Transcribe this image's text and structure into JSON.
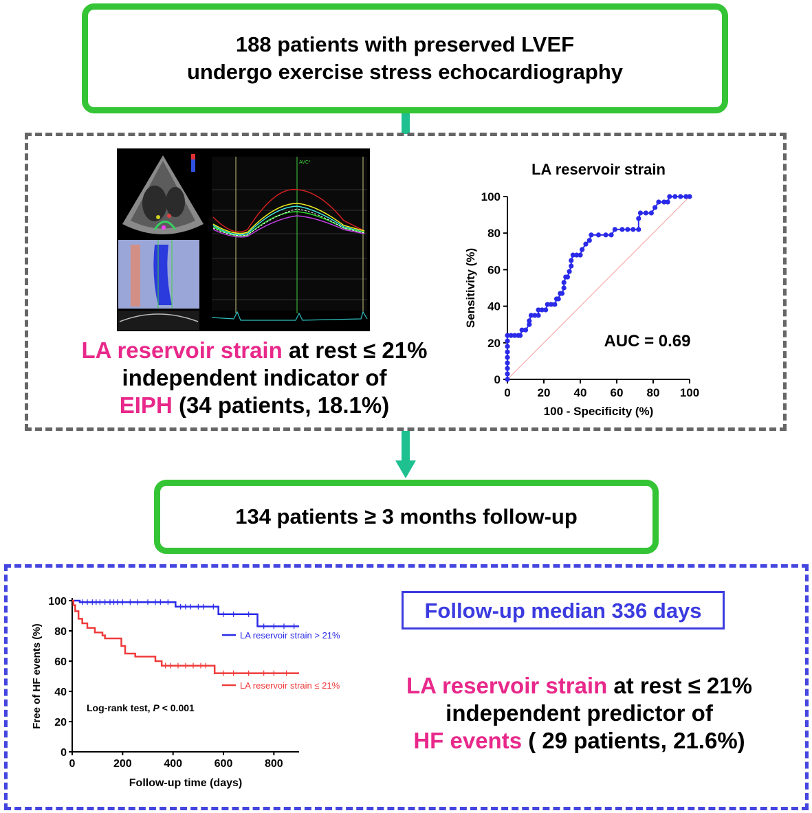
{
  "top_box": {
    "line1": "188 patients with preserved LVEF",
    "line2": "undergo exercise stress echocardiography"
  },
  "statement1": {
    "highlight1": "LA reservoir strain",
    "rest1": " at rest ≤ 21%",
    "line2": "independent indicator of",
    "highlight2": "EIPH",
    "rest2": " (34 patients, 18.1%)"
  },
  "middle_box": {
    "text": "134 patients ≥ 3 months follow-up"
  },
  "median_box": {
    "text": "Follow-up median 336 days"
  },
  "statement2": {
    "highlight1": "LA reservoir strain",
    "rest1": " at rest ≤ 21%",
    "line2": "independent predictor of",
    "highlight2": "HF events",
    "rest2": " ( 29 patients, 21.6%)"
  },
  "colors": {
    "green_border": "#35c435",
    "connector": "#1ec090",
    "gray_dash": "#666666",
    "blue_dash": "#4545e0",
    "highlight": "#e8288a",
    "km_blue": "#2a2ae8",
    "km_red": "#ef3a3a"
  },
  "echo_image": {
    "annotation": "AVC*"
  },
  "chart_data": [
    {
      "type": "scatter",
      "title": "LA reservoir strain",
      "xlabel": "100 - Specificity (%)",
      "ylabel": "Sensitivity (%)",
      "xlim": [
        0,
        100
      ],
      "ylim": [
        0,
        100
      ],
      "xticks": [
        "0",
        "20",
        "40",
        "60",
        "80",
        "100"
      ],
      "yticks": [
        "0",
        "20",
        "40",
        "60",
        "80",
        "100"
      ],
      "annotation": "AUC = 0.69",
      "reference_line": "diagonal",
      "series": [
        {
          "points": [
            [
              0,
              0
            ],
            [
              0,
              3
            ],
            [
              0,
              6
            ],
            [
              0,
              9
            ],
            [
              0,
              12
            ],
            [
              0,
              15
            ],
            [
              0,
              18
            ],
            [
              0,
              21
            ],
            [
              0,
              24
            ],
            [
              2,
              24
            ],
            [
              4,
              24
            ],
            [
              6,
              24
            ],
            [
              7,
              24
            ],
            [
              8,
              27
            ],
            [
              10,
              27
            ],
            [
              12,
              30
            ],
            [
              12,
              32
            ],
            [
              13,
              35
            ],
            [
              15,
              35
            ],
            [
              17,
              35
            ],
            [
              17,
              38
            ],
            [
              19,
              38
            ],
            [
              21,
              38
            ],
            [
              22,
              41
            ],
            [
              24,
              41
            ],
            [
              26,
              41
            ],
            [
              27,
              44
            ],
            [
              28,
              44
            ],
            [
              29,
              47
            ],
            [
              30,
              47
            ],
            [
              31,
              50
            ],
            [
              31,
              53
            ],
            [
              32,
              56
            ],
            [
              33,
              56
            ],
            [
              34,
              59
            ],
            [
              35,
              62
            ],
            [
              35,
              65
            ],
            [
              36,
              68
            ],
            [
              38,
              68
            ],
            [
              40,
              68
            ],
            [
              41,
              71
            ],
            [
              43,
              74
            ],
            [
              45,
              76
            ],
            [
              46,
              79
            ],
            [
              50,
              79
            ],
            [
              54,
              79
            ],
            [
              57,
              79
            ],
            [
              59,
              82
            ],
            [
              63,
              82
            ],
            [
              66,
              82
            ],
            [
              69,
              82
            ],
            [
              72,
              82
            ],
            [
              72,
              88
            ],
            [
              73,
              91
            ],
            [
              76,
              91
            ],
            [
              79,
              91
            ],
            [
              81,
              94
            ],
            [
              83,
              97
            ],
            [
              86,
              97
            ],
            [
              88,
              97
            ],
            [
              89,
              100
            ],
            [
              92,
              100
            ],
            [
              95,
              100
            ],
            [
              98,
              100
            ],
            [
              100,
              100
            ]
          ]
        }
      ]
    },
    {
      "type": "line",
      "title": "",
      "xlabel": "Follow-up time (days)",
      "ylabel": "Free of HF events (%)",
      "xlim": [
        0,
        900
      ],
      "ylim": [
        0,
        100
      ],
      "xticks": [
        "0",
        "200",
        "400",
        "600",
        "800"
      ],
      "yticks": [
        "0",
        "20",
        "40",
        "60",
        "80",
        "100"
      ],
      "annotation_prefix": "Log-rank test, ",
      "annotation_p": "P",
      "annotation_suffix": "  < 0.001",
      "series": [
        {
          "name": "LA reservoir strain > 21%",
          "color": "#2a2ae8",
          "steps": [
            [
              0,
              100
            ],
            [
              30,
              99
            ],
            [
              400,
              99
            ],
            [
              410,
              96
            ],
            [
              570,
              96
            ],
            [
              580,
              91
            ],
            [
              730,
              91
            ],
            [
              735,
              83
            ],
            [
              900,
              83
            ]
          ],
          "censor_x": [
            40,
            60,
            80,
            95,
            110,
            130,
            150,
            165,
            180,
            200,
            230,
            260,
            300,
            330,
            350,
            380,
            430,
            450,
            470,
            500,
            520,
            560,
            600,
            640,
            700,
            760,
            800,
            840,
            880
          ]
        },
        {
          "name": "LA reservoir strain ≤ 21%",
          "color": "#ef3a3a",
          "steps": [
            [
              0,
              100
            ],
            [
              5,
              97
            ],
            [
              12,
              93
            ],
            [
              25,
              88
            ],
            [
              40,
              85
            ],
            [
              60,
              82
            ],
            [
              90,
              79
            ],
            [
              120,
              77
            ],
            [
              130,
              75
            ],
            [
              190,
              75
            ],
            [
              195,
              70
            ],
            [
              210,
              65
            ],
            [
              245,
              65
            ],
            [
              250,
              63
            ],
            [
              320,
              63
            ],
            [
              330,
              60
            ],
            [
              355,
              57
            ],
            [
              560,
              57
            ],
            [
              565,
              52
            ],
            [
              900,
              52
            ]
          ],
          "censor_x": [
            370,
            390,
            420,
            450,
            480,
            510,
            530,
            600,
            640,
            700,
            760,
            800,
            850
          ]
        }
      ]
    }
  ]
}
